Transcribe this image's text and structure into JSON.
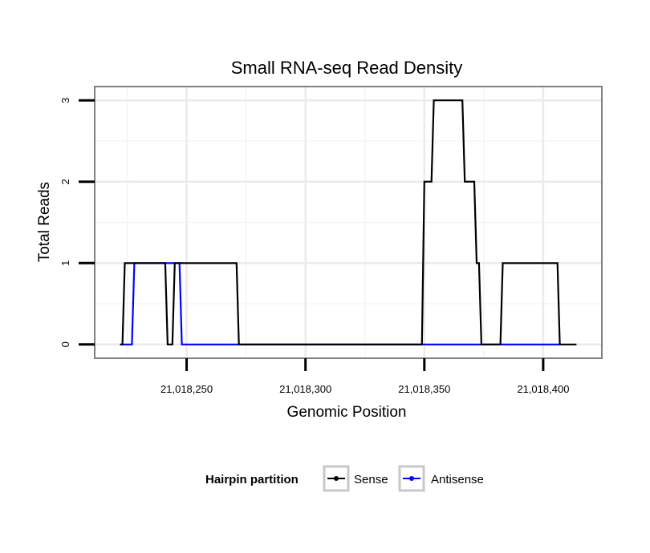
{
  "chart_data": {
    "type": "line",
    "title": "Small RNA-seq Read Density",
    "xlabel": "Genomic Position",
    "ylabel": "Total Reads",
    "xlim": [
      21018212,
      21018424
    ],
    "ylim": [
      -0.15,
      3.15
    ],
    "x_ticks": [
      21018250,
      21018300,
      21018350,
      21018400
    ],
    "x_tick_labels": [
      "21,018,250",
      "21,018,300",
      "21,018,350",
      "21,018,400"
    ],
    "y_ticks": [
      0,
      1,
      2,
      3
    ],
    "y_tick_labels": [
      "0",
      "1",
      "2",
      "3"
    ],
    "grid": true,
    "legend": {
      "title": "Hairpin partition",
      "position": "bottom"
    },
    "series": [
      {
        "name": "Sense",
        "color": "#000000",
        "x": [
          21018222,
          21018223,
          21018224,
          21018225,
          21018241,
          21018242,
          21018244,
          21018245,
          21018271,
          21018272,
          21018349,
          21018350,
          21018351,
          21018352,
          21018353,
          21018354,
          21018366,
          21018367,
          21018371,
          21018372,
          21018373,
          21018374,
          21018382,
          21018383,
          21018406,
          21018407,
          21018414
        ],
        "y": [
          0,
          0,
          1,
          1,
          1,
          0,
          0,
          1,
          1,
          0,
          0,
          2,
          2,
          2,
          2,
          3,
          3,
          2,
          2,
          1,
          1,
          0,
          0,
          1,
          1,
          0,
          0
        ]
      },
      {
        "name": "Antisense",
        "color": "#0000ff",
        "x": [
          21018222,
          21018227,
          21018228,
          21018247,
          21018248,
          21018272,
          21018350,
          21018407
        ],
        "y": [
          0,
          0,
          1,
          1,
          0,
          0,
          0,
          0
        ]
      }
    ]
  }
}
